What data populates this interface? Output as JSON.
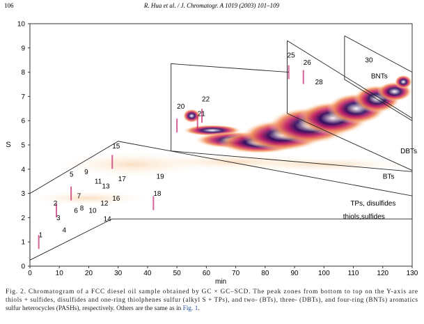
{
  "header": {
    "page": "106",
    "running_head": "R. Hua et al. / J. Chromatogr. A 1019 (2003) 101–109"
  },
  "figure": {
    "y_label": "S",
    "x_label": "min",
    "xticks": [
      0,
      10,
      20,
      30,
      40,
      50,
      60,
      70,
      80,
      90,
      100,
      110,
      120,
      130
    ],
    "yticks": [
      0,
      1,
      2,
      3,
      4,
      5,
      6,
      7,
      8,
      9,
      10
    ],
    "peaks": [
      "1",
      "2",
      "3",
      "4",
      "5",
      "6",
      "7",
      "8",
      "9",
      "10",
      "11",
      "12",
      "13",
      "14",
      "15",
      "16",
      "17",
      "18",
      "19",
      "20",
      "21",
      "22",
      "25",
      "26",
      "28",
      "30"
    ],
    "zones": [
      "BNTs",
      "DBTs",
      "BTs",
      "TPs, disulfides",
      "thiols,sulfides"
    ]
  },
  "caption": {
    "lines": [
      "Fig. 2. Chromatogram of a FCC diesel oil sample obtained by GC × GC–SCD. The peak zones from bottom to top on the Y-axis are",
      "thiols + sulfides, disulfides and one-ring thiolphenes sulfur (alkyl S + TPs), and two- (BTs), three- (DBTs), and four-ring (BNTs) aromatics",
      "sulfur heterocycles (PASHs), respectively. Others are the same as in "
    ],
    "link": "Fig. 1",
    "end": "."
  }
}
